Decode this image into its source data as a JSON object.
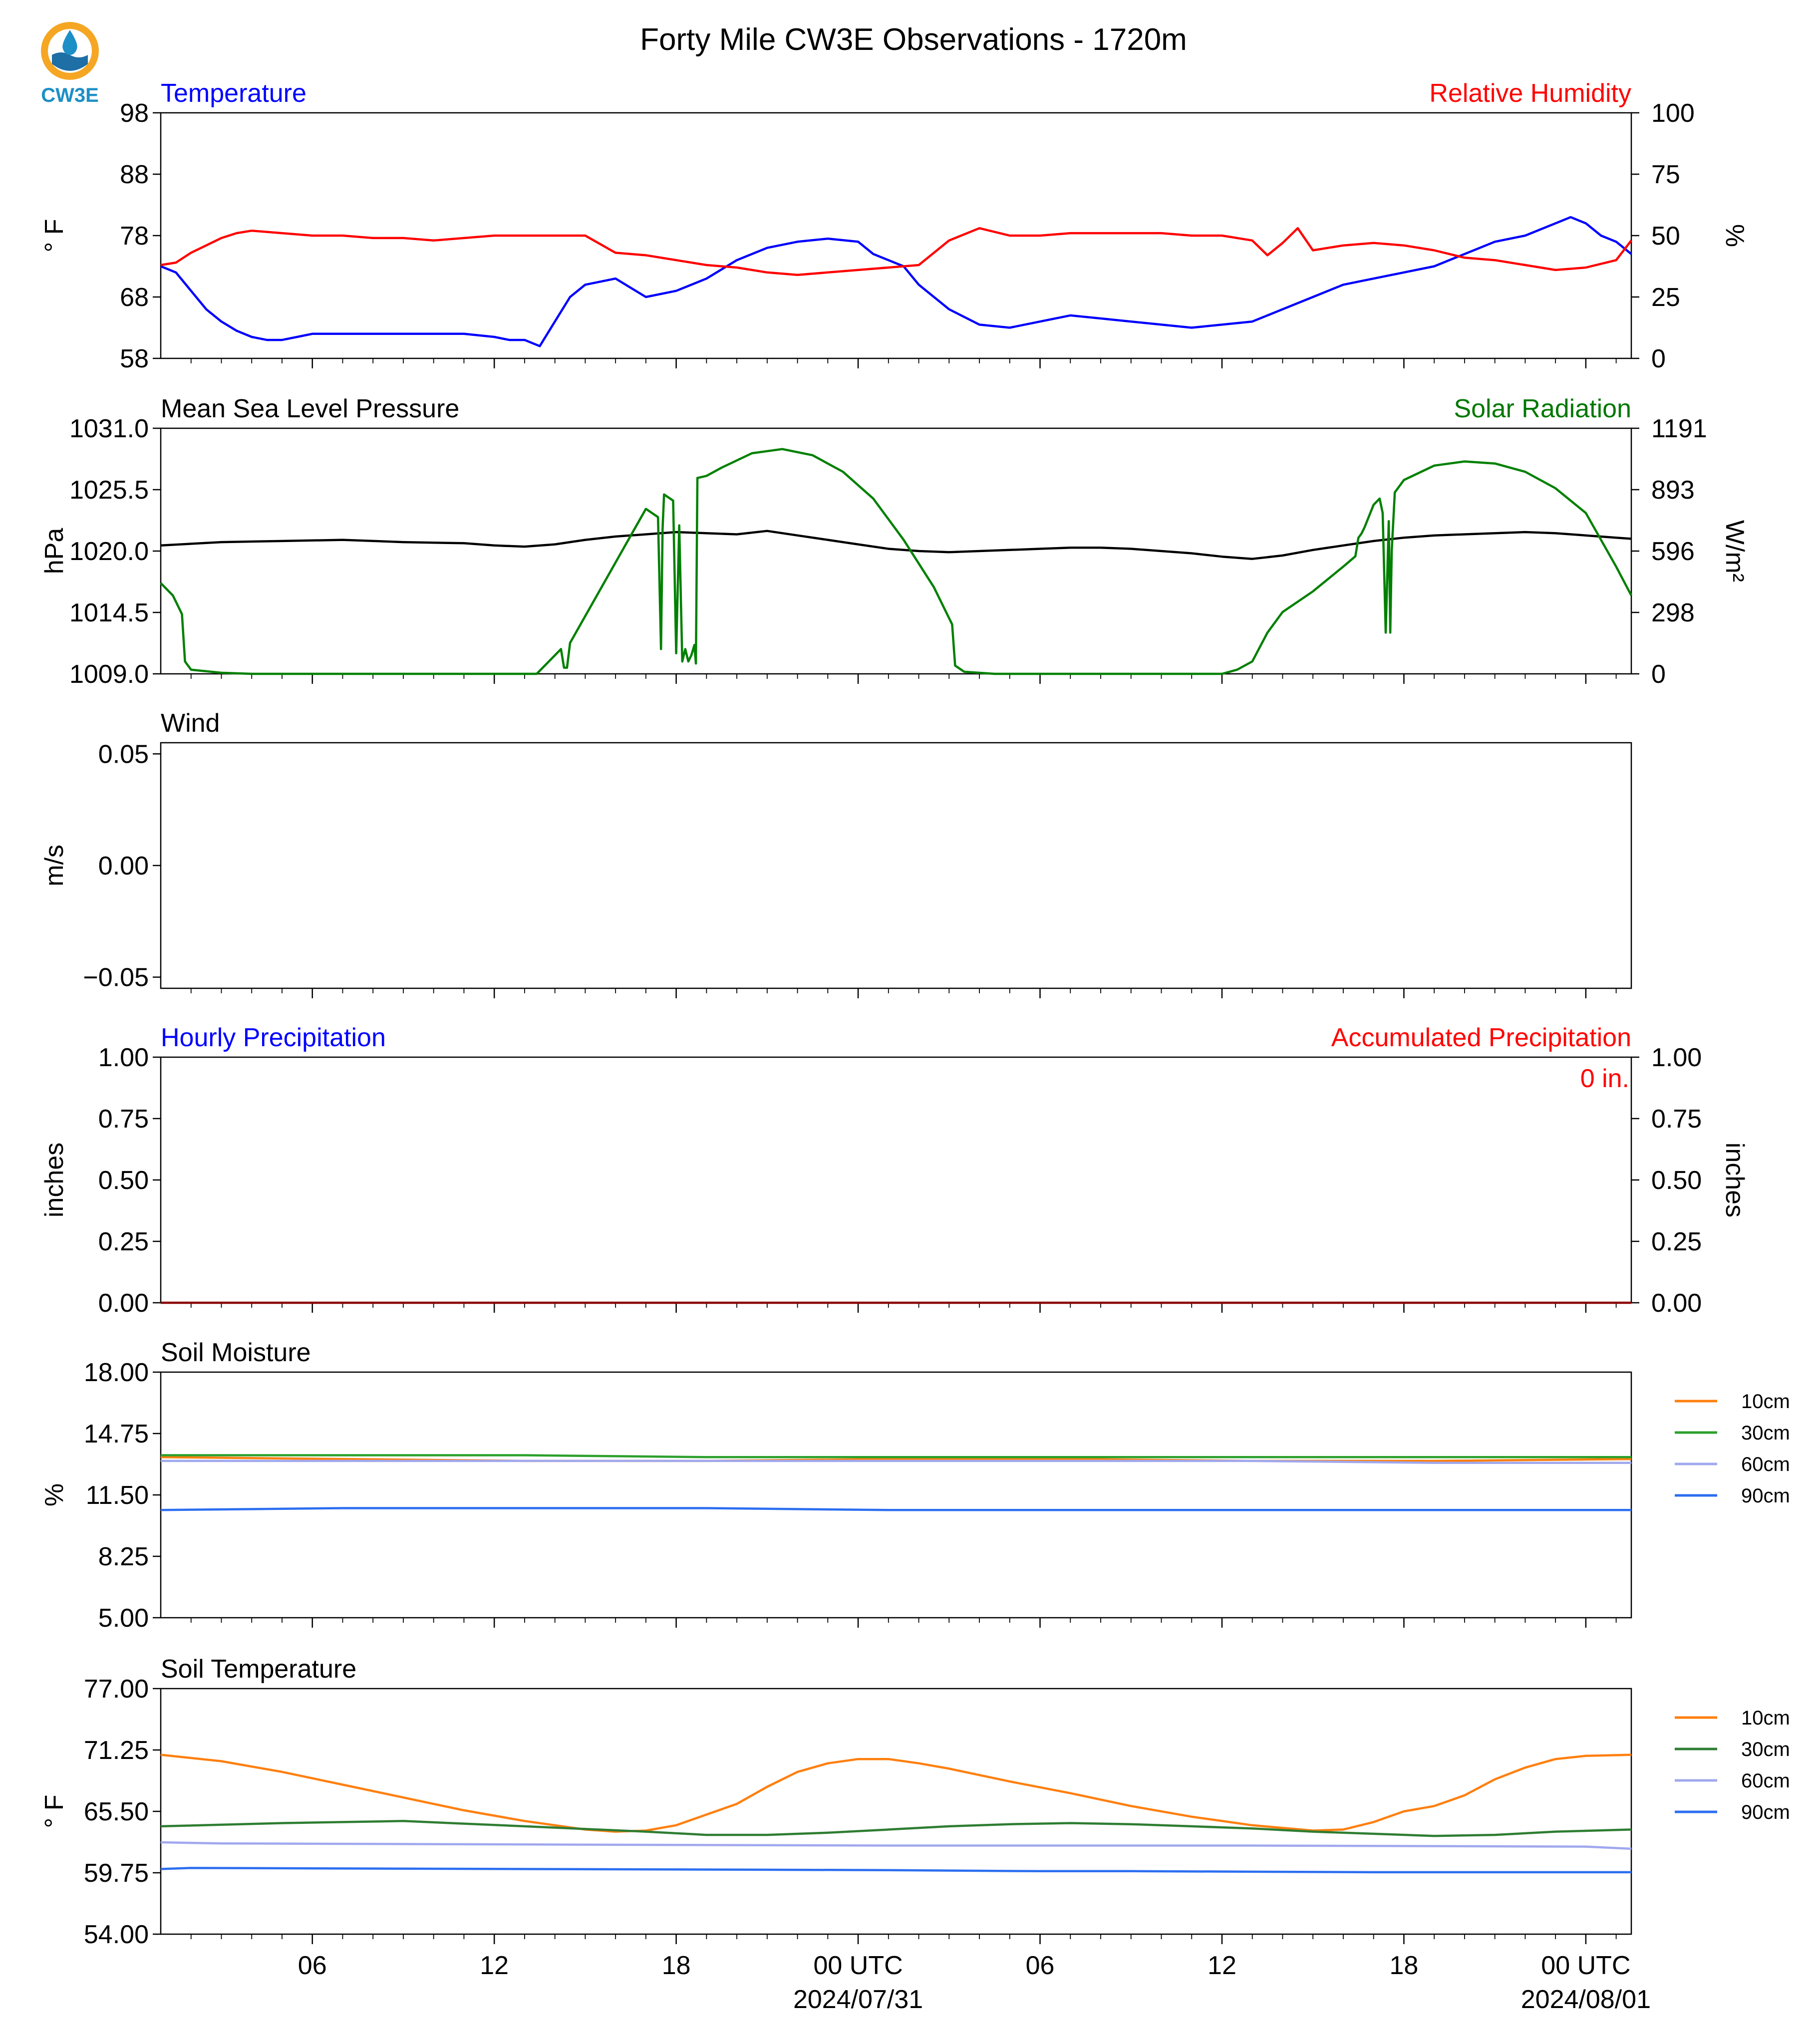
{
  "figure": {
    "title": "Forty Mile CW3E Observations - 1720m",
    "logo_text": "CW3E",
    "logo_colors": {
      "ring": "#f5a623",
      "drop": "#1d8fc7",
      "waves": "#1d6fa5",
      "text": "#1d8fc7"
    }
  },
  "x_axis": {
    "range_hours": [
      0,
      48.5
    ],
    "tick_hours": [
      5,
      11,
      17,
      23,
      29,
      35,
      41,
      47
    ],
    "tick_labels": [
      "06",
      "12",
      "18",
      "00 UTC",
      "06",
      "12",
      "18",
      "00 UTC"
    ],
    "date_labels": [
      {
        "hour": 23,
        "text": "2024/07/31"
      },
      {
        "hour": 47,
        "text": "2024/08/01"
      }
    ],
    "minor_every_hours": 1
  },
  "chart_data": [
    {
      "type": "line",
      "title_left": "Temperature",
      "title_right": "Relative Humidity",
      "title_left_color": "#0000ff",
      "title_right_color": "#ff0000",
      "ylabel_left": "° F",
      "ylabel_right": "%",
      "ylim_left": [
        58,
        98
      ],
      "ylim_right": [
        0,
        100
      ],
      "yticks_left": [
        "98",
        "88",
        "78",
        "68",
        "58"
      ],
      "yticks_right": [
        "100",
        "75",
        "50",
        "25",
        "0"
      ],
      "series": [
        {
          "axis": "left",
          "color": "#0000ff",
          "x": [
            0,
            0.5,
            1,
            1.5,
            2,
            2.5,
            3,
            3.5,
            4,
            4.5,
            5,
            6,
            7,
            8,
            9,
            10,
            11,
            11.5,
            12,
            12.5,
            13,
            13.5,
            14,
            15,
            16,
            17,
            18,
            19,
            20,
            21,
            22,
            23,
            23.5,
            24,
            24.5,
            25,
            26,
            27,
            28,
            29,
            30,
            31,
            32,
            33,
            34,
            35,
            36,
            37,
            38,
            39,
            40,
            41,
            42,
            43,
            44,
            45,
            46,
            46.5,
            47,
            47.5,
            48,
            48.5
          ],
          "y": [
            73,
            72,
            69,
            66,
            64,
            62.5,
            61.5,
            61,
            61,
            61.5,
            62,
            62,
            62,
            62,
            62,
            62,
            61.5,
            61,
            61,
            60,
            64,
            68,
            70,
            71,
            68,
            69,
            71,
            74,
            76,
            77,
            77.5,
            77,
            75,
            74,
            73,
            70,
            66,
            63.5,
            63,
            64,
            65,
            64.5,
            64,
            63.5,
            63,
            63.5,
            64,
            66,
            68,
            70,
            71,
            72,
            73,
            75,
            77,
            78,
            80,
            81,
            80,
            78,
            77,
            75
          ]
        },
        {
          "axis": "right",
          "color": "#ff0000",
          "x": [
            0,
            0.5,
            1,
            1.5,
            2,
            2.5,
            3,
            4,
            5,
            6,
            7,
            8,
            9,
            10,
            11,
            12,
            13,
            14,
            15,
            16,
            17,
            18,
            19,
            20,
            21,
            22,
            23,
            24,
            25,
            26,
            27,
            28,
            29,
            30,
            31,
            32,
            33,
            34,
            35,
            36,
            36.5,
            37,
            37.5,
            38,
            39,
            40,
            41,
            42,
            43,
            44,
            45,
            46,
            47,
            48,
            48.5
          ],
          "y": [
            38,
            39,
            43,
            46,
            49,
            51,
            52,
            51,
            50,
            50,
            49,
            49,
            48,
            49,
            50,
            50,
            50,
            50,
            43,
            42,
            40,
            38,
            37,
            35,
            34,
            35,
            36,
            37,
            38,
            48,
            53,
            50,
            50,
            51,
            51,
            51,
            51,
            50,
            50,
            48,
            42,
            47,
            53,
            44,
            46,
            47,
            46,
            44,
            41,
            40,
            38,
            36,
            37,
            40,
            48
          ]
        }
      ]
    },
    {
      "type": "line",
      "title_left": "Mean Sea Level Pressure",
      "title_right": "Solar Radiation",
      "title_left_color": "#000000",
      "title_right_color": "#007700",
      "ylabel_left": "hPa",
      "ylabel_right": "W/m²",
      "ylim_left": [
        1009,
        1031
      ],
      "ylim_right": [
        0,
        1191
      ],
      "yticks_left": [
        "1031.0",
        "1025.5",
        "1020.0",
        "1014.5",
        "1009.0"
      ],
      "yticks_right": [
        "1191",
        "893",
        "596",
        "298",
        "0"
      ],
      "series": [
        {
          "axis": "left",
          "color": "#000000",
          "x": [
            0,
            2,
            4,
            6,
            8,
            10,
            11,
            12,
            13,
            14,
            15,
            16,
            17,
            18,
            19,
            20,
            21,
            22,
            23,
            24,
            25,
            26,
            27,
            28,
            29,
            30,
            31,
            32,
            33,
            34,
            35,
            36,
            37,
            38,
            39,
            40,
            41,
            42,
            43,
            44,
            45,
            46,
            47,
            48,
            48.5
          ],
          "y": [
            1020.5,
            1020.8,
            1020.9,
            1021.0,
            1020.8,
            1020.7,
            1020.5,
            1020.4,
            1020.6,
            1021.0,
            1021.3,
            1021.5,
            1021.7,
            1021.6,
            1021.5,
            1021.8,
            1021.4,
            1021.0,
            1020.6,
            1020.2,
            1020.0,
            1019.9,
            1020.0,
            1020.1,
            1020.2,
            1020.3,
            1020.3,
            1020.2,
            1020.0,
            1019.8,
            1019.5,
            1019.3,
            1019.6,
            1020.1,
            1020.5,
            1020.9,
            1021.2,
            1021.4,
            1021.5,
            1021.6,
            1021.7,
            1021.6,
            1021.4,
            1021.2,
            1021.1
          ]
        },
        {
          "axis": "right",
          "color": "#008000",
          "x": [
            0,
            0.4,
            0.7,
            0.8,
            1,
            2,
            3,
            10,
            12,
            12.4,
            13.2,
            13.3,
            13.4,
            13.5,
            16.0,
            16.4,
            16.5,
            16.55,
            16.6,
            16.9,
            17.0,
            17.1,
            17.2,
            17.3,
            17.4,
            17.5,
            17.6,
            17.65,
            17.7,
            18.0,
            18.5,
            19.5,
            20.5,
            21.5,
            22.5,
            23.5,
            24.5,
            25.5,
            26.1,
            26.2,
            26.5,
            27.5,
            28,
            34.5,
            35,
            35.5,
            36,
            36.5,
            37,
            38,
            39,
            39.4,
            39.5,
            39.6,
            39.7,
            40.0,
            40.2,
            40.3,
            40.4,
            40.5,
            40.55,
            40.6,
            40.7,
            41.0,
            42,
            43,
            44,
            45,
            46,
            47,
            48,
            48.5
          ],
          "y": [
            440,
            380,
            290,
            60,
            20,
            5,
            0,
            0,
            0,
            0,
            120,
            30,
            30,
            150,
            800,
            760,
            120,
            700,
            870,
            840,
            100,
            720,
            60,
            120,
            60,
            90,
            140,
            50,
            950,
            960,
            1000,
            1070,
            1090,
            1060,
            980,
            850,
            650,
            420,
            240,
            40,
            10,
            0,
            0,
            0,
            0,
            20,
            60,
            200,
            300,
            400,
            520,
            570,
            660,
            680,
            710,
            820,
            850,
            780,
            200,
            740,
            200,
            600,
            880,
            940,
            1010,
            1030,
            1020,
            980,
            900,
            780,
            520,
            380
          ]
        }
      ]
    },
    {
      "type": "line",
      "title_left": "Wind",
      "title_left_color": "#000000",
      "ylabel_left": "m/s",
      "ylim_left": [
        -0.055,
        0.055
      ],
      "yticks_left": [
        {
          "label": "0.05",
          "value": 0.05
        },
        {
          "label": "0.00",
          "value": 0.0
        },
        {
          "label": "−0.05",
          "value": -0.05
        }
      ],
      "series": []
    },
    {
      "type": "line",
      "title_left": "Hourly Precipitation",
      "title_right": "Accumulated Precipitation",
      "title_left_color": "#0000ff",
      "title_right_color": "#ff0000",
      "ylabel_left": "inches",
      "ylabel_right": "inches",
      "ylim_left": [
        0,
        1
      ],
      "ylim_right": [
        0,
        1
      ],
      "yticks_left": [
        "1.00",
        "0.75",
        "0.50",
        "0.25",
        "0.00"
      ],
      "yticks_right": [
        "1.00",
        "0.75",
        "0.50",
        "0.25",
        "0.00"
      ],
      "annotation": "0 in.",
      "annotation_color": "#ff0000",
      "series": [
        {
          "axis": "left",
          "color": "#8b0000",
          "x": [
            0,
            48.5
          ],
          "y": [
            0,
            0
          ]
        }
      ]
    },
    {
      "type": "line",
      "title_left": "Soil Moisture",
      "title_left_color": "#000000",
      "ylabel_left": "%",
      "ylim_left": [
        5,
        18
      ],
      "yticks_left": [
        "18.00",
        "14.75",
        "11.50",
        "8.25",
        "5.00"
      ],
      "legend": [
        "10cm",
        "30cm",
        "60cm",
        "90cm"
      ],
      "legend_position": "right",
      "series": [
        {
          "name": "10cm",
          "color": "#ff7f0e",
          "x": [
            0,
            6,
            12,
            18,
            24,
            30,
            36,
            42,
            48.5
          ],
          "y": [
            13.5,
            13.4,
            13.3,
            13.3,
            13.4,
            13.4,
            13.3,
            13.3,
            13.4
          ]
        },
        {
          "name": "30cm",
          "color": "#2ca02c",
          "x": [
            0,
            6,
            12,
            18,
            24,
            30,
            36,
            42,
            48.5
          ],
          "y": [
            13.6,
            13.6,
            13.6,
            13.5,
            13.5,
            13.5,
            13.5,
            13.5,
            13.5
          ]
        },
        {
          "name": "60cm",
          "color": "#a0a8ee",
          "x": [
            0,
            6,
            12,
            18,
            24,
            30,
            36,
            42,
            48.5
          ],
          "y": [
            13.3,
            13.3,
            13.3,
            13.3,
            13.3,
            13.3,
            13.3,
            13.2,
            13.2
          ]
        },
        {
          "name": "90cm",
          "color": "#2b6ef0",
          "x": [
            0,
            6,
            12,
            18,
            24,
            30,
            36,
            42,
            48.5
          ],
          "y": [
            10.7,
            10.8,
            10.8,
            10.8,
            10.7,
            10.7,
            10.7,
            10.7,
            10.7
          ]
        }
      ]
    },
    {
      "type": "line",
      "title_left": "Soil Temperature",
      "title_left_color": "#000000",
      "ylabel_left": "° F",
      "ylim_left": [
        54,
        77
      ],
      "yticks_left": [
        "77.00",
        "71.25",
        "65.50",
        "59.75",
        "54.00"
      ],
      "legend": [
        "10cm",
        "30cm",
        "60cm",
        "90cm"
      ],
      "legend_position": "right",
      "series": [
        {
          "name": "10cm",
          "color": "#ff7f0e",
          "x": [
            0,
            2,
            4,
            6,
            8,
            10,
            12,
            14,
            15,
            16,
            17,
            18,
            19,
            20,
            21,
            22,
            23,
            24,
            25,
            26,
            28,
            30,
            32,
            34,
            36,
            38,
            39,
            40,
            41,
            42,
            43,
            44,
            45,
            46,
            47,
            48.5
          ],
          "y": [
            70.8,
            70.2,
            69.2,
            68.0,
            66.8,
            65.6,
            64.6,
            63.8,
            63.6,
            63.7,
            64.2,
            65.2,
            66.2,
            67.8,
            69.2,
            70.0,
            70.4,
            70.4,
            70.0,
            69.5,
            68.3,
            67.2,
            66.0,
            65.0,
            64.2,
            63.7,
            63.8,
            64.5,
            65.5,
            66.0,
            67.0,
            68.5,
            69.6,
            70.4,
            70.7,
            70.8
          ]
        },
        {
          "name": "30cm",
          "color": "#2e7d32",
          "x": [
            0,
            4,
            8,
            12,
            16,
            18,
            20,
            22,
            24,
            26,
            28,
            30,
            32,
            34,
            36,
            38,
            40,
            42,
            44,
            46,
            48.5
          ],
          "y": [
            64.1,
            64.4,
            64.6,
            64.1,
            63.6,
            63.3,
            63.3,
            63.5,
            63.8,
            64.1,
            64.3,
            64.4,
            64.3,
            64.1,
            63.9,
            63.6,
            63.4,
            63.2,
            63.3,
            63.6,
            63.8
          ]
        },
        {
          "name": "60cm",
          "color": "#a0a8ee",
          "x": [
            0,
            2,
            12,
            24,
            36,
            47,
            48.5
          ],
          "y": [
            62.6,
            62.5,
            62.4,
            62.3,
            62.3,
            62.2,
            62.0
          ]
        },
        {
          "name": "90cm",
          "color": "#2b6ef0",
          "x": [
            0,
            1,
            12,
            24,
            29,
            32,
            40,
            48.5
          ],
          "y": [
            60.1,
            60.2,
            60.1,
            60.0,
            59.9,
            59.9,
            59.8,
            59.8
          ]
        }
      ]
    }
  ]
}
